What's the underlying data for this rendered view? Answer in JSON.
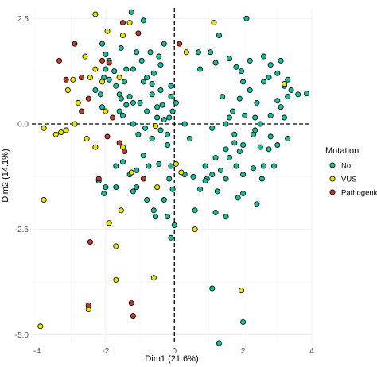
{
  "chart_data": {
    "type": "scatter",
    "xlabel": "Dim1 (21.6%)",
    "ylabel": "Dim2 (14.1%)",
    "xlim": [
      -4.15,
      4.0
    ],
    "ylim": [
      -5.2,
      2.75
    ],
    "xticks": [
      -4,
      -2,
      0,
      2,
      4
    ],
    "xtick_labels": [
      "-4",
      "-2",
      "0",
      "2",
      "4"
    ],
    "yticks": [
      2.5,
      0.0,
      -2.5,
      -5.0
    ],
    "ytick_labels": [
      "2.5",
      "0.0",
      "-2.5",
      "-5.0"
    ],
    "grid": true,
    "reference_lines": {
      "x": 0,
      "y": 0,
      "style": "dashed"
    },
    "legend": {
      "title": "Mutation",
      "position": "right",
      "entries": [
        {
          "label": "No",
          "color": "#1ABC9C"
        },
        {
          "label": "VUS",
          "color": "#E6E600"
        },
        {
          "label": "Pathogenic",
          "color": "#C0392B"
        }
      ]
    },
    "series": [
      {
        "name": "No",
        "color": "#1ABC9C",
        "points": [
          [
            -1.3,
            0.65
          ],
          [
            -1.0,
            0.5
          ],
          [
            -0.8,
            0.3
          ],
          [
            -1.7,
            0.9
          ],
          [
            -2.0,
            1.3
          ],
          [
            -1.5,
            0.2
          ],
          [
            -1.2,
            0.0
          ],
          [
            -0.5,
            0.4
          ],
          [
            -0.3,
            0.1
          ],
          [
            0.05,
            0.5
          ],
          [
            -0.05,
            0.3
          ],
          [
            -2.1,
            0.4
          ],
          [
            -2.3,
            0.8
          ],
          [
            -1.9,
            1.5
          ],
          [
            -0.4,
            1.4
          ],
          [
            0.3,
            0.0
          ],
          [
            -0.4,
            0.8
          ],
          [
            -1.1,
            1.7
          ],
          [
            -0.3,
            1.9
          ],
          [
            -0.6,
            1.2
          ],
          [
            -0.9,
            1.0
          ],
          [
            -0.1,
            0.9
          ],
          [
            -1.55,
            1.8
          ],
          [
            -0.95,
            1.5
          ],
          [
            -2.0,
            1.65
          ],
          [
            -2.1,
            1.9
          ],
          [
            -1.6,
            0.7
          ],
          [
            -2.15,
            0.7
          ],
          [
            -1.6,
            0.3
          ],
          [
            -1.4,
            0.45
          ],
          [
            -0.85,
            -0.1
          ],
          [
            -0.65,
            -0.35
          ],
          [
            -1.05,
            -0.25
          ],
          [
            -0.4,
            -0.15
          ],
          [
            -0.2,
            -0.5
          ],
          [
            -0.45,
            -0.95
          ],
          [
            -0.15,
            -1.3
          ],
          [
            -1.1,
            -1.1
          ],
          [
            -1.5,
            -0.9
          ],
          [
            -1.7,
            -1.5
          ],
          [
            -2.0,
            -1.5
          ],
          [
            -2.05,
            -1.65
          ],
          [
            -0.8,
            -1.8
          ],
          [
            -0.6,
            -2.05
          ],
          [
            -0.2,
            -2.2
          ],
          [
            -0.1,
            -2.7
          ],
          [
            -0.1,
            -1.0
          ],
          [
            -1.3,
            -1.2
          ],
          [
            -1.1,
            -1.5
          ],
          [
            -0.3,
            -1.8
          ],
          [
            -0.55,
            -2.2
          ],
          [
            0.3,
            -1.2
          ],
          [
            0.55,
            -1.25
          ],
          [
            0.75,
            -1.55
          ],
          [
            0.95,
            -1.3
          ],
          [
            1.25,
            -1.6
          ],
          [
            0.6,
            -2.05
          ],
          [
            1.2,
            -2.1
          ],
          [
            1.1,
            -0.1
          ],
          [
            1.5,
            0.0
          ],
          [
            1.7,
            0.3
          ],
          [
            1.9,
            0.6
          ],
          [
            2.0,
            1.0
          ],
          [
            2.2,
            0.8
          ],
          [
            2.4,
            0.5
          ],
          [
            2.6,
            1.0
          ],
          [
            2.8,
            1.4
          ],
          [
            3.0,
            1.2
          ],
          [
            3.2,
            0.9
          ],
          [
            3.6,
            0.7
          ],
          [
            3.1,
            0.4
          ],
          [
            2.8,
            0.2
          ],
          [
            2.5,
            0.0
          ],
          [
            2.3,
            -0.25
          ],
          [
            2.0,
            -0.5
          ],
          [
            1.75,
            -0.45
          ],
          [
            1.6,
            -0.8
          ],
          [
            1.8,
            -1.0
          ],
          [
            2.0,
            -1.2
          ],
          [
            2.3,
            -1.05
          ],
          [
            2.6,
            -1.0
          ],
          [
            2.9,
            -1.0
          ],
          [
            2.5,
            -0.55
          ],
          [
            1.9,
            -0.65
          ],
          [
            2.75,
            -0.6
          ],
          [
            3.0,
            -0.5
          ],
          [
            3.3,
            -0.35
          ],
          [
            2.2,
            1.5
          ],
          [
            2.6,
            1.6
          ],
          [
            1.8,
            1.35
          ],
          [
            1.6,
            1.55
          ],
          [
            1.2,
            1.45
          ],
          [
            1.4,
            0.65
          ],
          [
            1.75,
            -0.25
          ],
          [
            1.5,
            -0.6
          ],
          [
            3.1,
            1.5
          ],
          [
            3.4,
            0.8
          ],
          [
            3.3,
            0.65
          ],
          [
            3.0,
            0.55
          ],
          [
            2.35,
            -0.15
          ],
          [
            1.95,
            1.25
          ],
          [
            2.35,
            0.15
          ],
          [
            2.05,
            0.2
          ],
          [
            1.6,
            0.15
          ],
          [
            0.75,
            1.3
          ],
          [
            1.05,
            1.7
          ],
          [
            1.3,
            2.1
          ],
          [
            2.1,
            2.5
          ],
          [
            1.5,
            -1.3
          ],
          [
            1.1,
            -1.2
          ],
          [
            0.9,
            -1.35
          ],
          [
            0.0,
            -2.4
          ],
          [
            -0.05,
            -1.55
          ],
          [
            1.5,
            -2.2
          ],
          [
            2.4,
            -1.9
          ],
          [
            1.85,
            -1.75
          ],
          [
            0.7,
            1.7
          ],
          [
            -0.7,
            1.7
          ],
          [
            -1.4,
            1.3
          ],
          [
            -0.8,
            1.1
          ],
          [
            -1.55,
            0.6
          ],
          [
            -2.05,
            1.1
          ],
          [
            -0.35,
            0.45
          ],
          [
            2.75,
            1.1
          ],
          [
            2.0,
            -1.65
          ],
          [
            1.1,
            -3.9
          ],
          [
            2.0,
            -4.7
          ],
          [
            1.3,
            -5.2
          ],
          [
            -1.7,
            -1.0
          ],
          [
            -1.2,
            -1.6
          ],
          [
            -0.9,
            -0.75
          ],
          [
            -1.2,
            0.5
          ],
          [
            -0.5,
            0.15
          ],
          [
            -0.2,
            -0.25
          ],
          [
            -0.9,
            2.45
          ],
          [
            -1.2,
            1.3
          ],
          [
            -0.45,
            1.6
          ],
          [
            -1.45,
            1.0
          ],
          [
            -1.75,
            1.25
          ],
          [
            -0.65,
            0.7
          ],
          [
            -0.15,
            0.15
          ],
          [
            -1.9,
            1.05
          ],
          [
            -1.25,
            2.65
          ],
          [
            -0.65,
            0.95
          ],
          [
            -0.1,
            0.65
          ],
          [
            -2.2,
            -1.35
          ],
          [
            -0.75,
            -1.0
          ],
          [
            0.45,
            -0.35
          ],
          [
            0.9,
            -1.0
          ],
          [
            1.35,
            -1.1
          ],
          [
            3.2,
            0.15
          ],
          [
            2.55,
            -1.3
          ],
          [
            2.8,
            -0.3
          ],
          [
            1.2,
            -0.8
          ],
          [
            3.3,
            1.05
          ],
          [
            3.85,
            0.72
          ]
        ]
      },
      {
        "name": "VUS",
        "color": "#E6E600",
        "points": [
          [
            -2.3,
            2.6
          ],
          [
            -1.95,
            2.2
          ],
          [
            -1.3,
            2.4
          ],
          [
            -1.5,
            2.1
          ],
          [
            -2.6,
            1.6
          ],
          [
            -2.3,
            1.3
          ],
          [
            -2.45,
            1.1
          ],
          [
            -2.95,
            1.05
          ],
          [
            -3.1,
            0.8
          ],
          [
            -2.8,
            0.5
          ],
          [
            -2.1,
            1.0
          ],
          [
            -1.6,
            1.1
          ],
          [
            -2.0,
            0.3
          ],
          [
            -2.55,
            -0.35
          ],
          [
            -2.9,
            0.0
          ],
          [
            -3.3,
            -0.2
          ],
          [
            -3.45,
            -0.25
          ],
          [
            -3.15,
            -0.15
          ],
          [
            -3.8,
            -0.1
          ],
          [
            -2.3,
            -0.55
          ],
          [
            -1.5,
            -0.55
          ],
          [
            -1.55,
            -2.05
          ],
          [
            -1.9,
            -2.35
          ],
          [
            -3.8,
            -1.8
          ],
          [
            -1.7,
            -3.7
          ],
          [
            -0.6,
            -3.65
          ],
          [
            -2.5,
            -4.4
          ],
          [
            -3.9,
            -4.8
          ],
          [
            -1.25,
            -1.15
          ],
          [
            0.35,
            1.7
          ],
          [
            0.05,
            -0.95
          ],
          [
            1.15,
            2.4
          ],
          [
            3.2,
            0.95
          ],
          [
            1.95,
            -3.95
          ],
          [
            0.6,
            -2.5
          ],
          [
            -1.7,
            -2.9
          ],
          [
            -0.55,
            -0.05
          ],
          [
            -0.5,
            -1.5
          ],
          [
            0.2,
            -1.15
          ]
        ]
      },
      {
        "name": "Pathogenic",
        "color": "#C0392B",
        "points": [
          [
            -2.9,
            1.9
          ],
          [
            -3.35,
            1.5
          ],
          [
            -2.7,
            1.1
          ],
          [
            -3.15,
            1.05
          ],
          [
            -2.1,
            1.5
          ],
          [
            -2.5,
            0.6
          ],
          [
            -2.7,
            0.3
          ],
          [
            -1.8,
            0.15
          ],
          [
            -1.95,
            -0.3
          ],
          [
            -1.6,
            -0.45
          ],
          [
            -1.45,
            -0.65
          ],
          [
            -2.2,
            -1.3
          ],
          [
            -1.5,
            2.4
          ],
          [
            -0.9,
            -1.3
          ],
          [
            -2.45,
            -2.8
          ],
          [
            -2.5,
            -4.3
          ],
          [
            -1.25,
            -4.25
          ],
          [
            -1.2,
            -4.55
          ],
          [
            0.15,
            1.9
          ],
          [
            -1.9,
            1.45
          ],
          [
            -1.05,
            2.15
          ]
        ]
      }
    ]
  }
}
